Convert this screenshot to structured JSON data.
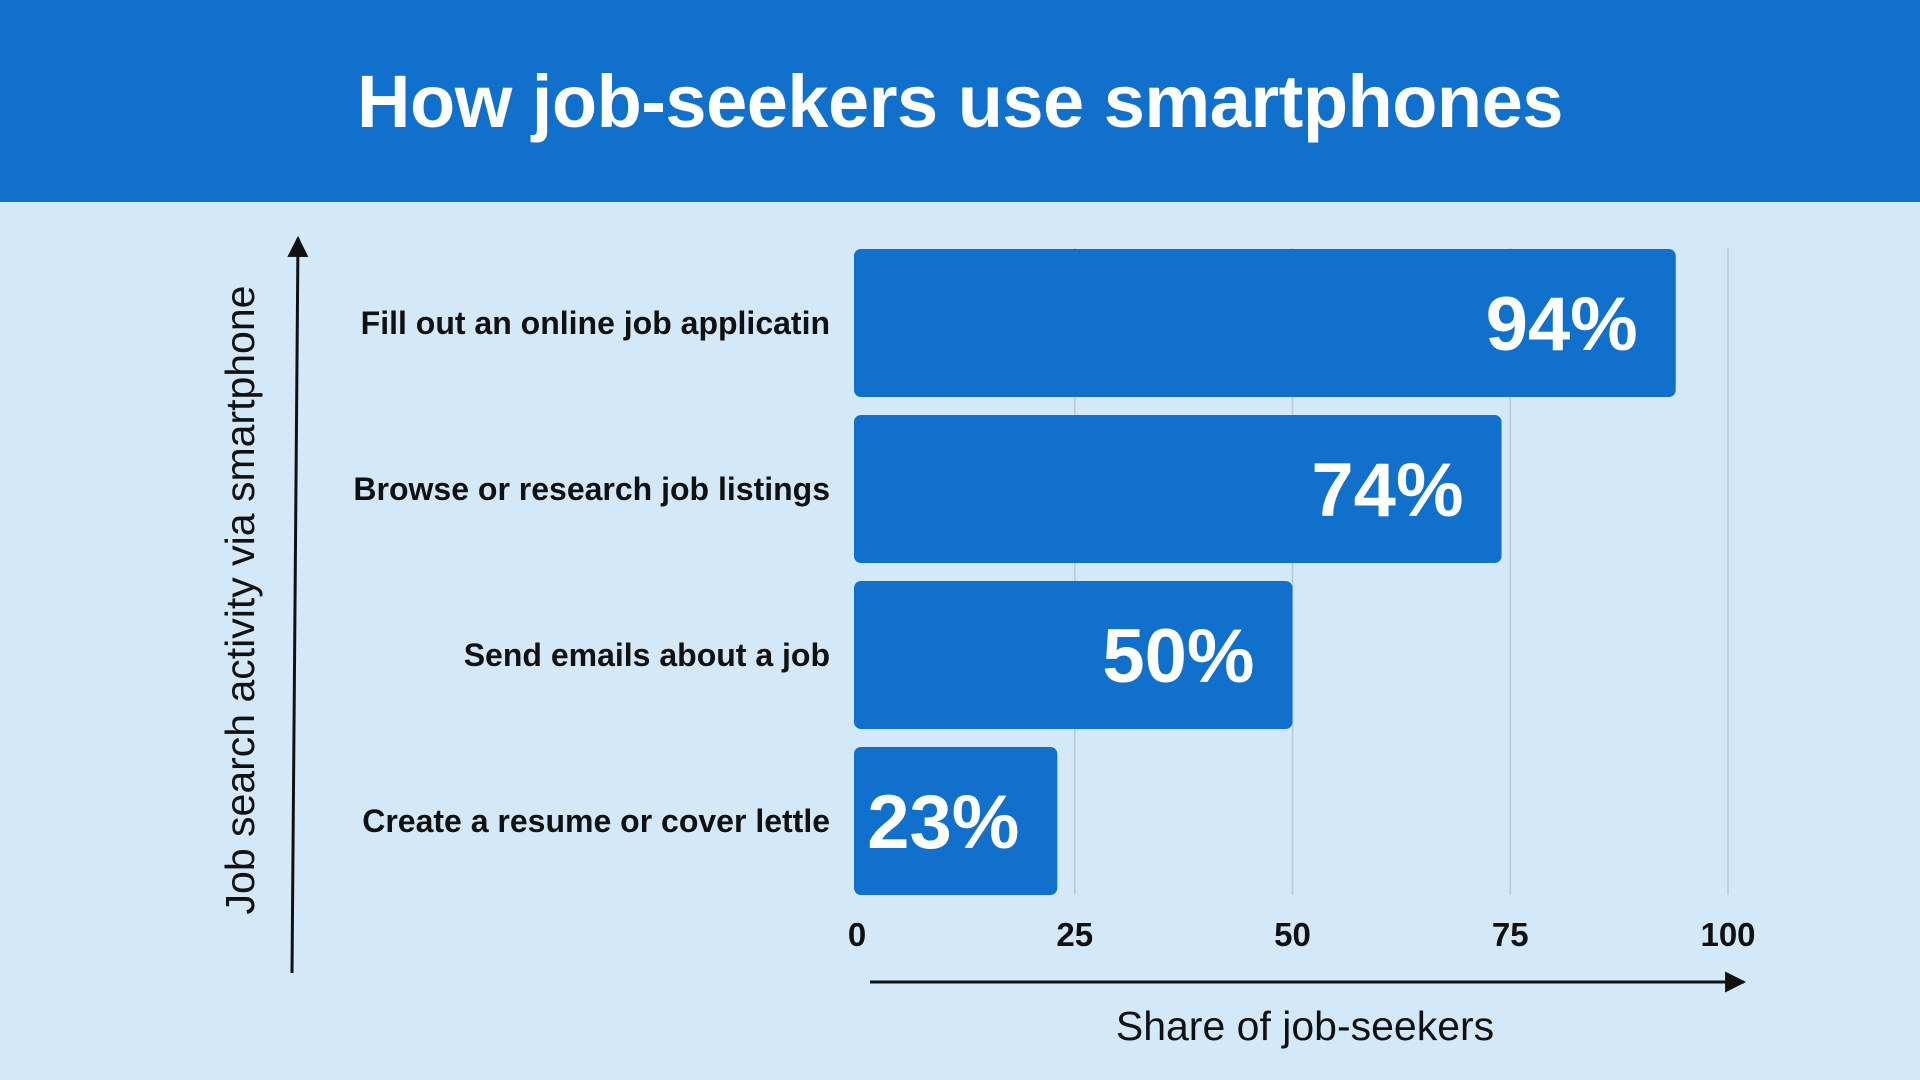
{
  "header": {
    "title": "How job-seekers use smartphones"
  },
  "colors": {
    "header_bg": "#1170cc",
    "background": "#d3e8f9",
    "bar": "#1170cc",
    "grid": "#b7c9da",
    "axis": "#111111"
  },
  "chart_data": {
    "type": "bar",
    "orientation": "horizontal",
    "title": "How job-seekers use smartphones",
    "xlabel": "Share of job-seekers",
    "ylabel": "Job search activity via smartphone",
    "categories": [
      "Fill out an online job applicatin",
      "Browse or research job listings",
      "Send emails about a job",
      "Create a resume or cover lettle"
    ],
    "values": [
      94,
      74,
      50,
      23
    ],
    "value_labels": [
      "94%",
      "74%",
      "50%",
      "23%"
    ],
    "xlim": [
      0,
      100
    ],
    "xticks": [
      0,
      25,
      50,
      75,
      100
    ],
    "xtick_labels": [
      "0",
      "25",
      "50",
      "75",
      "100"
    ],
    "grid": true,
    "legend": "none"
  }
}
